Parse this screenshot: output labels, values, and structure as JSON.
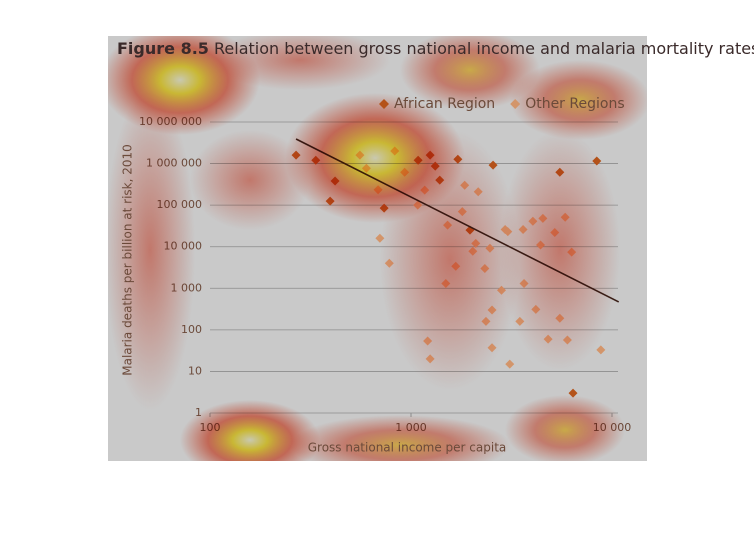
{
  "chart_data": {
    "type": "scatter",
    "title_label": "Figure 8.5",
    "title": "Relation between gross national income and malaria mortality rates",
    "x_label": "Gross national income per capita",
    "y_label": "Malaria deaths per billion at risk, 2010",
    "log_x": true,
    "log_y": true,
    "grid": true,
    "legend": "top-right",
    "xlim": [
      100,
      10000
    ],
    "xticks": [
      100,
      {
        "value": 1000,
        "label": "1 000"
      },
      {
        "value": 10000,
        "label": "10 000"
      }
    ],
    "ylim": [
      1,
      10000000
    ],
    "yticks": [
      1,
      10,
      100,
      {
        "value": 1000,
        "label": "1 000"
      },
      {
        "value": 10000,
        "label": "10 000"
      },
      {
        "value": 100000,
        "label": "100 000"
      },
      {
        "value": 1000000,
        "label": "1 000 000"
      },
      {
        "value": 10000000,
        "label": "10 000 000"
      }
    ],
    "series": [
      {
        "name": "African Region",
        "color": "#b4531a",
        "x": [
          268,
          336,
          419,
          396,
          735,
          1245,
          1320,
          1710,
          2560,
          1965,
          5500,
          8400,
          6400,
          1085,
          1390
        ],
        "values": [
          1600000,
          1200000,
          380000,
          125000,
          85000,
          1600000,
          870000,
          1270000,
          920000,
          25000,
          620000,
          1150000,
          3,
          1200000,
          400000
        ]
      },
      {
        "name": "Other Regions",
        "color": "#d3956a",
        "x": [
          557,
          600,
          686,
          700,
          780,
          830,
          930,
          1080,
          1170,
          1520,
          1670,
          1490,
          1210,
          1245,
          1800,
          1850,
          2030,
          2100,
          2330,
          2360,
          2530,
          2530,
          2470,
          2160,
          2940,
          2820,
          3030,
          3100,
          3480,
          3610,
          3650,
          4040,
          4180,
          4410,
          4530,
          4810,
          5190,
          5500,
          5850,
          6000,
          6300,
          8800
        ],
        "values": [
          1600000,
          770000,
          235000,
          16000,
          4000,
          2000000,
          620000,
          100000,
          230000,
          33000,
          3400,
          1300,
          54,
          20,
          70000,
          300000,
          7800,
          12000,
          3000,
          160,
          300,
          37,
          9200,
          210000,
          26000,
          900,
          23000,
          15,
          160,
          26000,
          1300,
          41000,
          310,
          11000,
          48000,
          60,
          22000,
          190,
          51000,
          57,
          7400,
          33
        ]
      }
    ],
    "trendline": {
      "color": "#3a1f17",
      "x": [
        268,
        10800
      ],
      "values": [
        3900000,
        470
      ]
    }
  }
}
